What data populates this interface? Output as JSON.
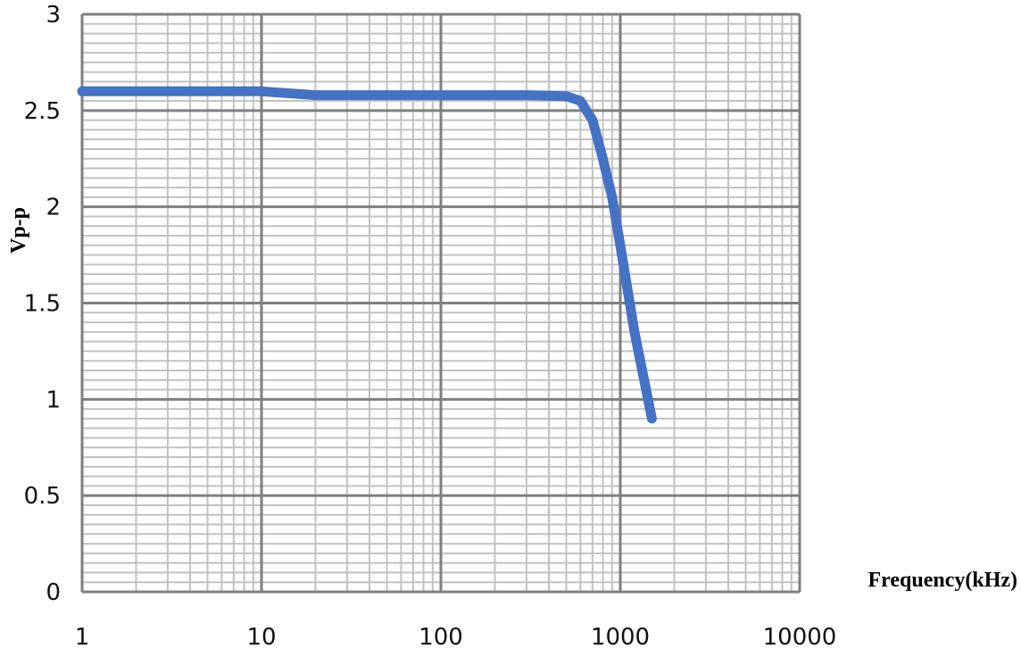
{
  "chart_data": {
    "type": "line",
    "title": "",
    "xlabel": "Frequency(kHz)",
    "ylabel": "Vp-p",
    "x_scale": "log",
    "xlim": [
      1,
      10000
    ],
    "ylim": [
      0,
      3
    ],
    "x_ticks": [
      "1",
      "10",
      "100",
      "1000",
      "10000"
    ],
    "y_ticks": [
      "0",
      "0.5",
      "1",
      "1.5",
      "2",
      "2.5",
      "3"
    ],
    "grid": true,
    "legend": "none",
    "series": [
      {
        "color": "#4472C4",
        "points": [
          {
            "x": 1,
            "y": 2.6
          },
          {
            "x": 5,
            "y": 2.6
          },
          {
            "x": 10,
            "y": 2.6
          },
          {
            "x": 20,
            "y": 2.58
          },
          {
            "x": 50,
            "y": 2.58
          },
          {
            "x": 100,
            "y": 2.58
          },
          {
            "x": 300,
            "y": 2.58
          },
          {
            "x": 500,
            "y": 2.575
          },
          {
            "x": 600,
            "y": 2.55
          },
          {
            "x": 700,
            "y": 2.45
          },
          {
            "x": 800,
            "y": 2.25
          },
          {
            "x": 900,
            "y": 2.05
          },
          {
            "x": 1000,
            "y": 1.8
          },
          {
            "x": 1200,
            "y": 1.35
          },
          {
            "x": 1500,
            "y": 0.9
          }
        ]
      }
    ]
  }
}
